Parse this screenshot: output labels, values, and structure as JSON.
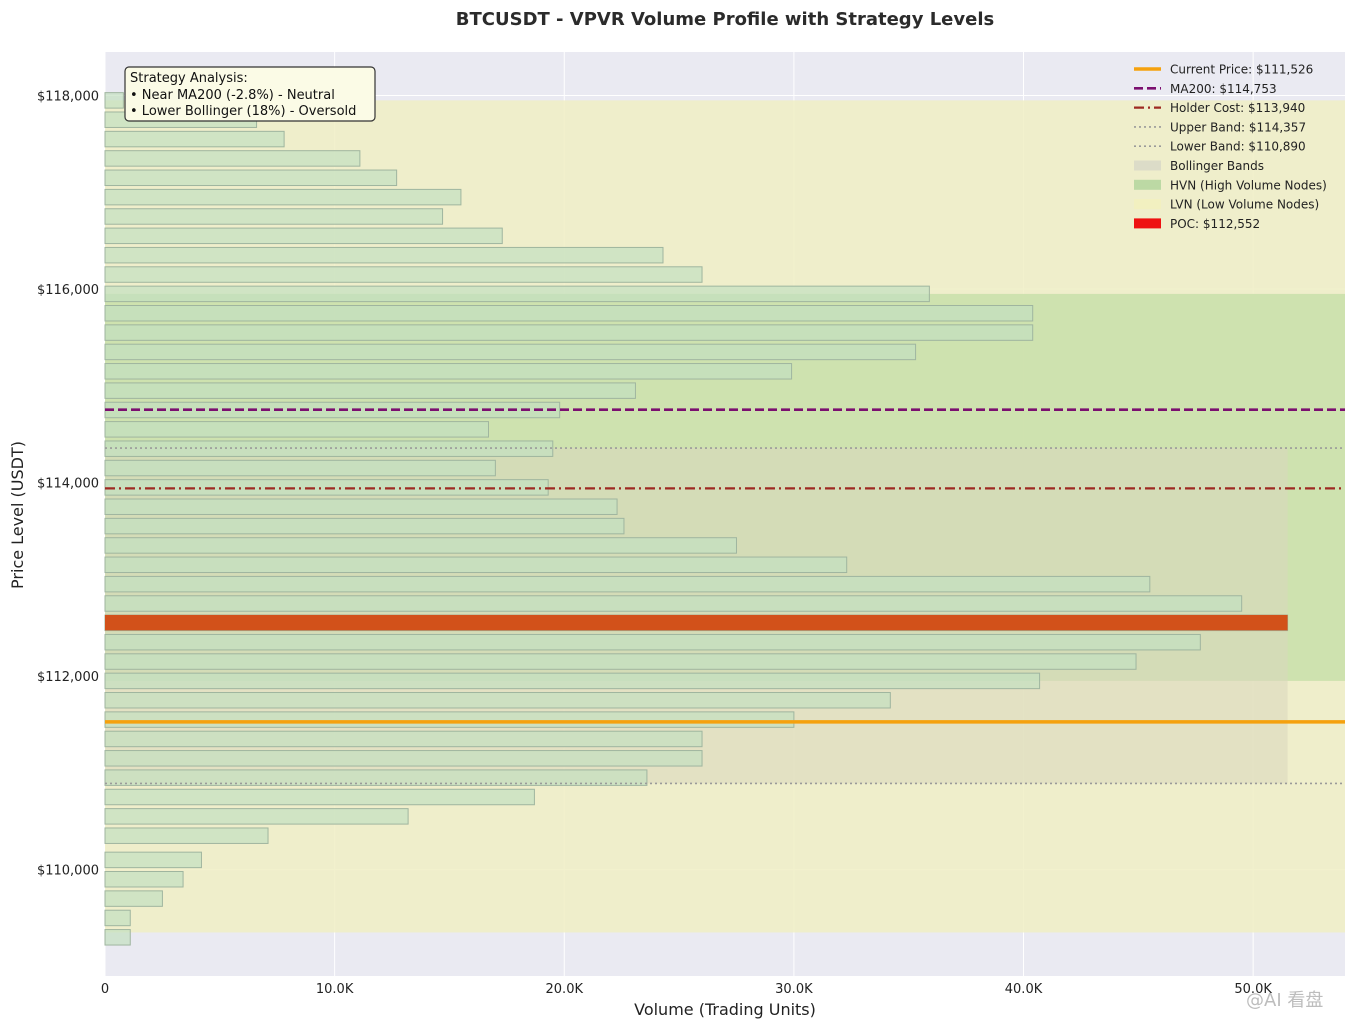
{
  "chart_data": {
    "type": "bar",
    "orientation": "horizontal",
    "title": "BTCUSDT - VPVR Volume Profile with Strategy Levels",
    "xlabel": "Volume (Trading Units)",
    "ylabel": "Price Level (USDT)",
    "xlim": [
      0,
      54000
    ],
    "ylim": [
      108900,
      118450
    ],
    "x_ticks": [
      {
        "value": 0,
        "label": "0"
      },
      {
        "value": 10000,
        "label": "10.0K"
      },
      {
        "value": 20000,
        "label": "20.0K"
      },
      {
        "value": 30000,
        "label": "30.0K"
      },
      {
        "value": 40000,
        "label": "40.0K"
      },
      {
        "value": 50000,
        "label": "50.0K"
      }
    ],
    "y_ticks": [
      {
        "value": 110000,
        "label": "$110,000"
      },
      {
        "value": 112000,
        "label": "$112,000"
      },
      {
        "value": 114000,
        "label": "$114,000"
      },
      {
        "value": 116000,
        "label": "$116,000"
      },
      {
        "value": 118000,
        "label": "$118,000"
      }
    ],
    "grid": true,
    "bar_height": 160,
    "bars": [
      {
        "price": 109300,
        "volume": 1100
      },
      {
        "price": 109500,
        "volume": 1100
      },
      {
        "price": 109700,
        "volume": 2500
      },
      {
        "price": 109900,
        "volume": 3400
      },
      {
        "price": 110100,
        "volume": 4200
      },
      {
        "price": 110350,
        "volume": 7100
      },
      {
        "price": 110550,
        "volume": 13200
      },
      {
        "price": 110750,
        "volume": 18700
      },
      {
        "price": 110950,
        "volume": 23600
      },
      {
        "price": 111150,
        "volume": 26000
      },
      {
        "price": 111350,
        "volume": 26000
      },
      {
        "price": 111550,
        "volume": 30000
      },
      {
        "price": 111750,
        "volume": 34200
      },
      {
        "price": 111950,
        "volume": 40700
      },
      {
        "price": 112150,
        "volume": 44900
      },
      {
        "price": 112350,
        "volume": 47700
      },
      {
        "price": 112550,
        "volume": 51500
      },
      {
        "price": 112750,
        "volume": 49500
      },
      {
        "price": 112950,
        "volume": 45500
      },
      {
        "price": 113150,
        "volume": 32300
      },
      {
        "price": 113350,
        "volume": 27500
      },
      {
        "price": 113550,
        "volume": 22600
      },
      {
        "price": 113750,
        "volume": 22300
      },
      {
        "price": 113950,
        "volume": 19300
      },
      {
        "price": 114150,
        "volume": 17000
      },
      {
        "price": 114350,
        "volume": 19500
      },
      {
        "price": 114550,
        "volume": 16700
      },
      {
        "price": 114750,
        "volume": 19800
      },
      {
        "price": 114950,
        "volume": 23100
      },
      {
        "price": 115150,
        "volume": 29900
      },
      {
        "price": 115350,
        "volume": 35300
      },
      {
        "price": 115550,
        "volume": 40400
      },
      {
        "price": 115750,
        "volume": 40400
      },
      {
        "price": 115950,
        "volume": 35900
      },
      {
        "price": 116150,
        "volume": 26000
      },
      {
        "price": 116350,
        "volume": 24300
      },
      {
        "price": 116550,
        "volume": 17300
      },
      {
        "price": 116750,
        "volume": 14700
      },
      {
        "price": 116950,
        "volume": 15500
      },
      {
        "price": 117150,
        "volume": 12700
      },
      {
        "price": 117350,
        "volume": 11100
      },
      {
        "price": 117550,
        "volume": 7800
      },
      {
        "price": 117750,
        "volume": 6600
      },
      {
        "price": 117950,
        "volume": 800
      }
    ],
    "poc": {
      "price": 112552,
      "volume": 51500
    },
    "zones": {
      "lvn": {
        "low": 109350,
        "high": 117950
      },
      "hvn": {
        "low": 111950,
        "high": 115950
      },
      "bollinger": {
        "low": 110890,
        "high": 114357,
        "volume_max": 51500
      }
    },
    "levels": [
      {
        "name": "current_price",
        "price": 111526
      },
      {
        "name": "ma200",
        "price": 114753
      },
      {
        "name": "holder_cost",
        "price": 113940
      },
      {
        "name": "upper_band",
        "price": 114357
      },
      {
        "name": "lower_band",
        "price": 110890
      }
    ],
    "legend": {
      "position": "top-right",
      "entries": [
        {
          "label": "Current Price: $111,526",
          "kind": "line",
          "style": "solid",
          "color": "#f5a10e"
        },
        {
          "label": "MA200: $114,753",
          "kind": "line",
          "style": "dashed",
          "color": "#7b0f6f"
        },
        {
          "label": "Holder Cost: $113,940",
          "kind": "line",
          "style": "dashdot",
          "color": "#9e2a22"
        },
        {
          "label": "Upper Band: $114,357",
          "kind": "line",
          "style": "dotted",
          "color": "#9a9a9a"
        },
        {
          "label": "Lower Band: $110,890",
          "kind": "line",
          "style": "dotted",
          "color": "#9a9a9a"
        },
        {
          "label": "Bollinger Bands",
          "kind": "patch",
          "color": "#dcdcc8"
        },
        {
          "label": "HVN (High Volume Nodes)",
          "kind": "patch",
          "color": "#bcd9a4"
        },
        {
          "label": "LVN (Low Volume Nodes)",
          "kind": "patch",
          "color": "#f2f0c0"
        },
        {
          "label": "POC: $112,552",
          "kind": "patch",
          "color": "#ee1111"
        }
      ]
    },
    "annotation": {
      "lines": [
        "Strategy Analysis:",
        "• Near MA200 (-2.8%) - Neutral",
        "• Lower Bollinger (18%) - Oversold"
      ]
    },
    "colors": {
      "plot_bg": "#eaeaf2",
      "bar_fill": "#c3e0c0",
      "bar_stroke": "#9fb59f",
      "poc_fill": "#d2511a",
      "lvn_fill": "#f0eec4",
      "hvn_fill": "#c6dea8",
      "bollinger_fill": "#d9d7be"
    }
  },
  "watermark": "@AI 看盘"
}
